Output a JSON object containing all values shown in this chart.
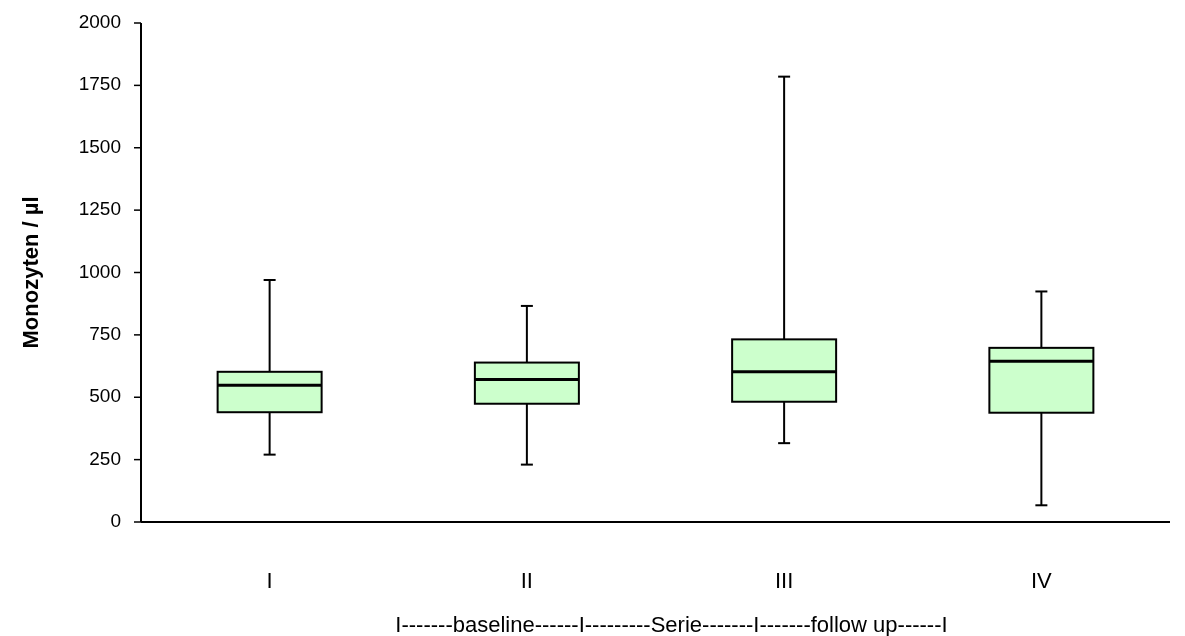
{
  "chart_data": {
    "type": "box",
    "xlabel": "I-------baseline------I---------Serie-------I-------follow up------I",
    "ylabel": "Monozyten / µl",
    "categories": [
      "I",
      "II",
      "III",
      "IV"
    ],
    "boxes": [
      {
        "low": 270,
        "q1": 440,
        "median": 548,
        "q3": 602,
        "high": 970
      },
      {
        "low": 230,
        "q1": 474,
        "median": 571,
        "q3": 639,
        "high": 866
      },
      {
        "low": 316,
        "q1": 482,
        "median": 602,
        "q3": 732,
        "high": 1785
      },
      {
        "low": 67,
        "q1": 438,
        "median": 644,
        "q3": 698,
        "high": 924
      }
    ],
    "color": "#ccffcc",
    "ylim": [
      0,
      2000
    ],
    "yticks": [
      0,
      250,
      500,
      750,
      1000,
      1250,
      1500,
      1750,
      2000
    ],
    "grid": false
  }
}
